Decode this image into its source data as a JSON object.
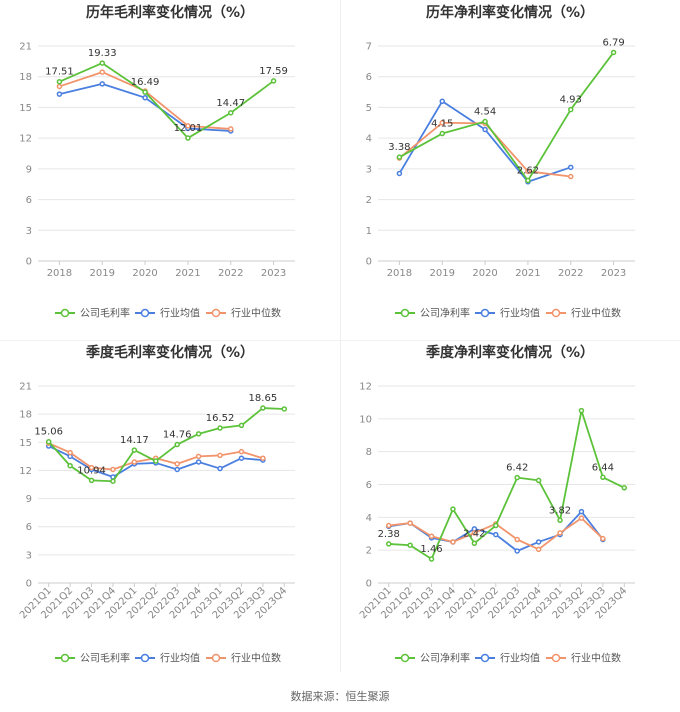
{
  "colors": {
    "company": "#5cc23a",
    "avg": "#4a7fe0",
    "median": "#f2946b",
    "grid": "#e6e6e6",
    "axis": "#cccccc"
  },
  "source": "数据来源：恒生聚源",
  "chart_data": [
    {
      "type": "line",
      "title": "历年毛利率变化情况（%）",
      "categories": [
        "2018",
        "2019",
        "2020",
        "2021",
        "2022",
        "2023"
      ],
      "yticks": [
        "0",
        "3",
        "6",
        "9",
        "12",
        "15",
        "18",
        "21"
      ],
      "ylim": [
        0,
        21
      ],
      "legend": [
        "公司毛利率",
        "行业均值",
        "行业中位数"
      ],
      "series": [
        {
          "name": "公司毛利率",
          "values": [
            17.51,
            19.33,
            16.49,
            12.01,
            14.47,
            17.59
          ]
        },
        {
          "name": "行业均值",
          "values": [
            16.3,
            17.3,
            15.95,
            12.95,
            12.7,
            null
          ]
        },
        {
          "name": "行业中位数",
          "values": [
            17.05,
            18.45,
            16.6,
            13.2,
            12.9,
            null
          ]
        }
      ],
      "annotations": [
        {
          "index": 0,
          "text": "17.51"
        },
        {
          "index": 1,
          "text": "19.33"
        },
        {
          "index": 2,
          "text": "16.49"
        },
        {
          "index": 3,
          "text": "12.01"
        },
        {
          "index": 4,
          "text": "14.47"
        },
        {
          "index": 5,
          "text": "17.59"
        }
      ]
    },
    {
      "type": "line",
      "title": "历年净利率变化情况（%）",
      "categories": [
        "2018",
        "2019",
        "2020",
        "2021",
        "2022",
        "2023"
      ],
      "yticks": [
        "0",
        "1",
        "2",
        "3",
        "4",
        "5",
        "6",
        "7"
      ],
      "ylim": [
        0,
        7
      ],
      "legend": [
        "公司净利率",
        "行业均值",
        "行业中位数"
      ],
      "series": [
        {
          "name": "公司净利率",
          "values": [
            3.38,
            4.15,
            4.54,
            2.62,
            4.93,
            6.79
          ]
        },
        {
          "name": "行业均值",
          "values": [
            2.85,
            5.2,
            4.28,
            2.58,
            3.05,
            null
          ]
        },
        {
          "name": "行业中位数",
          "values": [
            3.35,
            4.5,
            4.48,
            2.92,
            2.75,
            null
          ]
        }
      ],
      "annotations": [
        {
          "index": 0,
          "text": "3.38"
        },
        {
          "index": 1,
          "text": "4.15"
        },
        {
          "index": 2,
          "text": "4.54"
        },
        {
          "index": 3,
          "text": "2.62"
        },
        {
          "index": 4,
          "text": "4.93"
        },
        {
          "index": 5,
          "text": "6.79"
        }
      ]
    },
    {
      "type": "line",
      "title": "季度毛利率变化情况（%）",
      "categories": [
        "2021Q1",
        "2021Q2",
        "2021Q3",
        "2021Q4",
        "2022Q1",
        "2022Q2",
        "2022Q3",
        "2022Q4",
        "2023Q1",
        "2023Q2",
        "2023Q3",
        "2023Q4"
      ],
      "yticks": [
        "0",
        "3",
        "6",
        "9",
        "12",
        "15",
        "18",
        "21"
      ],
      "ylim": [
        0,
        21
      ],
      "legend": [
        "公司毛利率",
        "行业均值",
        "行业中位数"
      ],
      "series": [
        {
          "name": "公司毛利率",
          "values": [
            15.06,
            12.5,
            10.94,
            10.85,
            14.17,
            13.0,
            14.76,
            15.9,
            16.52,
            16.8,
            18.65,
            18.55
          ]
        },
        {
          "name": "行业均值",
          "values": [
            14.6,
            13.5,
            12.1,
            11.3,
            12.7,
            12.8,
            12.1,
            12.9,
            12.2,
            13.3,
            13.1,
            null
          ]
        },
        {
          "name": "行业中位数",
          "values": [
            14.9,
            13.9,
            12.3,
            12.1,
            12.9,
            13.3,
            12.7,
            13.5,
            13.6,
            14.0,
            13.3,
            null
          ]
        }
      ],
      "annotations": [
        {
          "index": 0,
          "text": "15.06"
        },
        {
          "index": 2,
          "text": "10.94"
        },
        {
          "index": 4,
          "text": "14.17"
        },
        {
          "index": 6,
          "text": "14.76"
        },
        {
          "index": 8,
          "text": "16.52"
        },
        {
          "index": 10,
          "text": "18.65"
        }
      ]
    },
    {
      "type": "line",
      "title": "季度净利率变化情况（%）",
      "categories": [
        "2021Q1",
        "2021Q2",
        "2021Q3",
        "2021Q4",
        "2022Q1",
        "2022Q2",
        "2022Q3",
        "2022Q4",
        "2023Q1",
        "2023Q2",
        "2023Q3",
        "2023Q4"
      ],
      "yticks": [
        "0",
        "2",
        "4",
        "6",
        "8",
        "10",
        "12"
      ],
      "ylim": [
        0,
        12
      ],
      "legend": [
        "公司净利率",
        "行业均值",
        "行业中位数"
      ],
      "series": [
        {
          "name": "公司净利率",
          "values": [
            2.38,
            2.3,
            1.46,
            4.5,
            2.42,
            3.5,
            6.42,
            6.25,
            3.82,
            10.5,
            6.44,
            5.8
          ]
        },
        {
          "name": "行业均值",
          "values": [
            3.45,
            3.65,
            2.75,
            2.5,
            3.3,
            2.95,
            1.95,
            2.5,
            2.95,
            4.35,
            2.65,
            null
          ]
        },
        {
          "name": "行业中位数",
          "values": [
            3.5,
            3.65,
            2.85,
            2.5,
            3.05,
            3.6,
            2.65,
            2.05,
            3.05,
            3.95,
            2.7,
            null
          ]
        }
      ],
      "annotations": [
        {
          "index": 0,
          "text": "2.38"
        },
        {
          "index": 2,
          "text": "1.46"
        },
        {
          "index": 4,
          "text": "2.42"
        },
        {
          "index": 6,
          "text": "6.42"
        },
        {
          "index": 8,
          "text": "3.82"
        },
        {
          "index": 10,
          "text": "6.44"
        }
      ]
    }
  ]
}
